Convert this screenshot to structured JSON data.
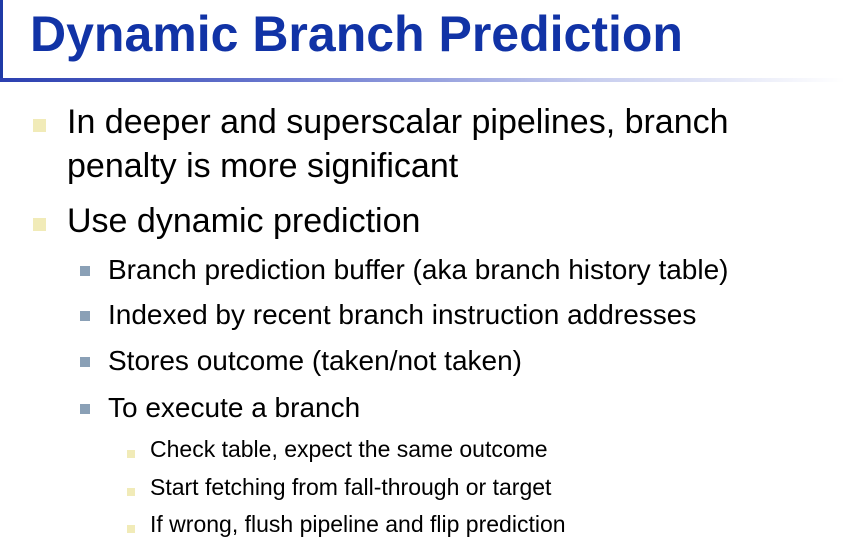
{
  "slide": {
    "title": "Dynamic Branch Prediction",
    "bullets": [
      {
        "level": 1,
        "line1": "In deeper and superscalar pipelines, branch",
        "line2": "penalty is more significant"
      },
      {
        "level": 1,
        "text": "Use dynamic prediction"
      },
      {
        "level": 2,
        "text": "Branch prediction buffer (aka branch history table)"
      },
      {
        "level": 2,
        "text": "Indexed by recent branch instruction addresses"
      },
      {
        "level": 2,
        "text": "Stores outcome (taken/not taken)"
      },
      {
        "level": 2,
        "text": "To execute a branch"
      },
      {
        "level": 3,
        "text": "Check table, expect the same outcome"
      },
      {
        "level": 3,
        "text": "Start fetching from fall-through or target"
      },
      {
        "level": 3,
        "text": "If wrong, flush pipeline and flip prediction"
      }
    ]
  },
  "colors": {
    "title": "#1133a6",
    "level1_marker": "#f1ebb8",
    "level2_marker": "#8aa0b6",
    "level3_marker": "#f1ebb8"
  }
}
